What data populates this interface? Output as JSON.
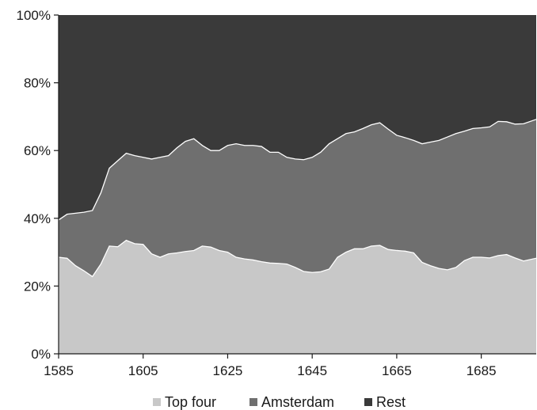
{
  "chart_data": {
    "type": "area",
    "stacked": true,
    "percent": true,
    "xlim": [
      1585,
      1698
    ],
    "ylim": [
      0,
      100
    ],
    "x_ticks": [
      1585,
      1605,
      1625,
      1645,
      1665,
      1685
    ],
    "x_tick_labels": [
      "1585",
      "1605",
      "1625",
      "1645",
      "1665",
      "1685"
    ],
    "y_ticks": [
      0,
      20,
      40,
      60,
      80,
      100
    ],
    "y_tick_labels": [
      "0%",
      "20%",
      "40%",
      "60%",
      "80%",
      "100%"
    ],
    "grid": false,
    "legend_position": "bottom",
    "x": [
      1585,
      1587,
      1589,
      1591,
      1593,
      1595,
      1597,
      1599,
      1601,
      1603,
      1605,
      1607,
      1609,
      1611,
      1613,
      1615,
      1617,
      1619,
      1621,
      1623,
      1625,
      1627,
      1629,
      1631,
      1633,
      1635,
      1637,
      1639,
      1641,
      1643,
      1645,
      1647,
      1649,
      1651,
      1653,
      1655,
      1657,
      1659,
      1661,
      1663,
      1665,
      1667,
      1669,
      1671,
      1673,
      1675,
      1677,
      1679,
      1681,
      1683,
      1685,
      1687,
      1689,
      1691,
      1693,
      1695,
      1698
    ],
    "series": [
      {
        "name": "Top four",
        "color": "#c8c8c8",
        "values": [
          28.5,
          28.2,
          26.0,
          24.5,
          22.8,
          26.5,
          31.8,
          31.6,
          33.5,
          32.5,
          32.3,
          29.5,
          28.5,
          29.5,
          29.8,
          30.2,
          30.5,
          31.8,
          31.5,
          30.5,
          30.0,
          28.5,
          28.0,
          27.7,
          27.2,
          26.8,
          26.7,
          26.5,
          25.5,
          24.3,
          24.0,
          24.2,
          25.0,
          28.5,
          30.0,
          31.0,
          31.0,
          31.8,
          32.0,
          30.8,
          30.5,
          30.3,
          29.8,
          27.0,
          26.0,
          25.2,
          24.8,
          25.5,
          27.5,
          28.5,
          28.5,
          28.3,
          29.0,
          29.3,
          28.3,
          27.4,
          28.2
        ]
      },
      {
        "name": "Amsterdam",
        "color": "#6f6f6f",
        "values": [
          11.0,
          13.0,
          15.5,
          17.3,
          19.5,
          21.0,
          23.0,
          25.4,
          25.7,
          26.0,
          25.7,
          28.0,
          29.5,
          29.0,
          31.0,
          32.5,
          33.0,
          29.7,
          28.5,
          29.5,
          31.5,
          33.5,
          33.5,
          33.8,
          34.0,
          32.7,
          32.8,
          31.5,
          32.0,
          33.0,
          34.0,
          35.3,
          37.0,
          35.0,
          35.0,
          34.5,
          35.5,
          35.8,
          36.2,
          35.5,
          34.0,
          33.5,
          33.2,
          35.0,
          36.5,
          37.8,
          39.2,
          39.5,
          38.2,
          38.0,
          38.2,
          38.7,
          39.6,
          39.2,
          39.5,
          40.5,
          41.0
        ]
      },
      {
        "name": "Rest",
        "color": "#3a3a3a",
        "values": [
          60.5,
          58.8,
          58.5,
          58.2,
          57.7,
          52.5,
          45.2,
          43.0,
          40.8,
          41.5,
          42.0,
          42.5,
          42.0,
          41.5,
          39.2,
          37.3,
          36.5,
          38.5,
          40.0,
          40.0,
          38.5,
          38.0,
          38.5,
          38.5,
          38.8,
          40.5,
          40.5,
          42.0,
          42.5,
          42.7,
          42.0,
          40.5,
          38.0,
          36.5,
          35.0,
          34.5,
          33.5,
          32.4,
          31.8,
          33.7,
          35.5,
          36.2,
          37.0,
          38.0,
          37.5,
          37.0,
          36.0,
          35.0,
          34.3,
          33.5,
          33.3,
          33.0,
          31.4,
          31.5,
          32.2,
          32.1,
          30.8
        ]
      }
    ]
  },
  "legend": {
    "items": [
      {
        "label": "Top four",
        "color": "#c8c8c8"
      },
      {
        "label": "Amsterdam",
        "color": "#6f6f6f"
      },
      {
        "label": "Rest",
        "color": "#3a3a3a"
      }
    ]
  }
}
